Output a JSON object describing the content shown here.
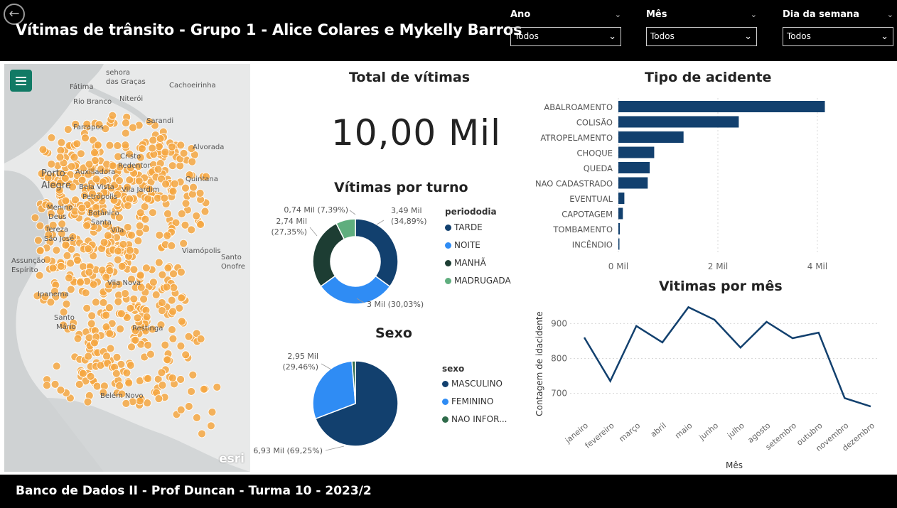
{
  "header": {
    "back_icon": "back-arrow-icon",
    "title": "Vítimas de trânsito - Grupo 1 - Alice Colares e Mykelly Barros",
    "slicers": [
      {
        "label": "Ano",
        "value": "Todos"
      },
      {
        "label": "Mês",
        "value": "Todos"
      },
      {
        "label": "Dia da semana",
        "value": "Todos"
      }
    ]
  },
  "map": {
    "menu_icon": "hamburger-icon",
    "attribution": "esri",
    "point_color": "#f5a742",
    "places": [
      "Sarandi",
      "Cachoeirinha",
      "Porto",
      "Alegre",
      "Alvorada",
      "Restinga",
      "Vila Nova",
      "Ipanema",
      "Belém Novo",
      "Viamópolis",
      "Santo",
      "Onofre",
      "Fátima",
      "Niterói",
      "Rio Branco",
      "sehora",
      "das Graças",
      "Farrapos",
      "Cristo",
      "Redentor",
      "Auxiliadora",
      "Bela Vista",
      "Petrópolis",
      "Vila Jardim",
      "Menino",
      "Deus",
      "Botânico",
      "Santa",
      "Tereza",
      "São José",
      "Vila",
      "Assunção",
      "Espírito",
      "Santo",
      "Mário",
      "Quintana"
    ]
  },
  "kpi": {
    "title": "Total de vítimas",
    "value": "10,00 Mil"
  },
  "turno": {
    "title": "Vítimas por turno",
    "legend_title": "periododia",
    "slices": [
      {
        "name": "TARDE",
        "value": 3.49,
        "pct": 34.89,
        "label1": "3,49 Mil",
        "label2": "(34,89%)",
        "color": "#12406e"
      },
      {
        "name": "NOITE",
        "value": 3.0,
        "pct": 30.03,
        "label1": "3 Mil (30,03%)",
        "label2": "",
        "color": "#2f8cf4"
      },
      {
        "name": "MANHÃ",
        "value": 2.74,
        "pct": 27.35,
        "label1": "2,74 Mil",
        "label2": "(27,35%)",
        "color": "#1d3d33"
      },
      {
        "name": "MADRUGADA",
        "value": 0.74,
        "pct": 7.39,
        "label1": "0,74 Mil (7,39%)",
        "label2": "",
        "color": "#5fae7e"
      }
    ]
  },
  "sexo": {
    "title": "Sexo",
    "legend_title": "sexo",
    "slices": [
      {
        "name": "MASCULINO",
        "value": 6.93,
        "pct": 69.25,
        "label1": "6,93 Mil (69,25%)",
        "label2": "",
        "color": "#12406e"
      },
      {
        "name": "FEMININO",
        "value": 2.95,
        "pct": 29.46,
        "label1": "2,95 Mil",
        "label2": "(29,46%)",
        "color": "#2f8cf4"
      },
      {
        "name": "NAO INFOR...",
        "value": 0.13,
        "pct": 1.29,
        "label1": "",
        "label2": "",
        "color": "#2f6b4b"
      }
    ]
  },
  "tipo": {
    "title": "Tipo de acidente",
    "chart_data": {
      "type": "bar",
      "orientation": "horizontal",
      "categories": [
        "ABALROAMENTO",
        "COLISÃO",
        "ATROPELAMENTO",
        "CHOQUE",
        "QUEDA",
        "NAO CADASTRADO",
        "EVENTUAL",
        "CAPOTAGEM",
        "TOMBAMENTO",
        "INCÊNDIO"
      ],
      "values": [
        4.15,
        2.42,
        1.31,
        0.72,
        0.63,
        0.59,
        0.12,
        0.09,
        0.03,
        0.01
      ],
      "xticks": [
        "0 Mil",
        "2 Mil",
        "4 Mil"
      ],
      "xtick_values": [
        0,
        2,
        4
      ],
      "xlim": [
        0,
        4.4
      ],
      "color": "#12406e"
    }
  },
  "mes": {
    "title": "Vitimas por mês",
    "chart_data": {
      "type": "line",
      "categories": [
        "janeiro",
        "fevereiro",
        "março",
        "abril",
        "maio",
        "junho",
        "julho",
        "agosto",
        "setembro",
        "outubro",
        "novembro",
        "dezembro"
      ],
      "values": [
        860,
        735,
        893,
        846,
        947,
        911,
        831,
        905,
        858,
        874,
        686,
        662
      ],
      "ylabel": "Contagem de idacidente",
      "xlabel": "Mês",
      "yticks": [
        700,
        800,
        900
      ],
      "ylim": [
        650,
        960
      ],
      "color": "#12406e"
    }
  },
  "footer": {
    "text": "Banco de Dados II - Prof Duncan - Turma 10 - 2023/2"
  }
}
